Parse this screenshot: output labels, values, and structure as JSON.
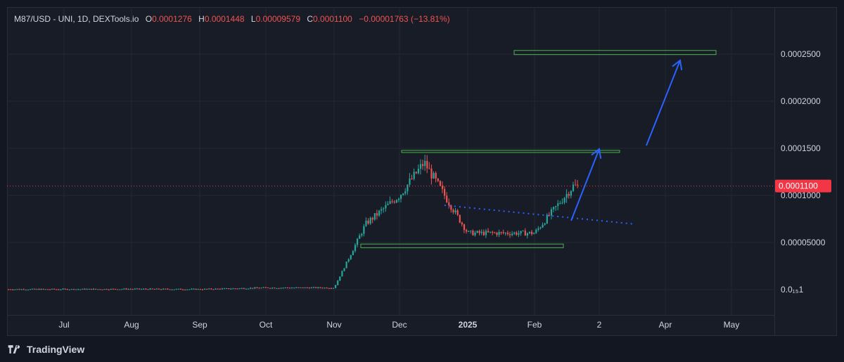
{
  "legend": {
    "symbol": "M87/USD - UNI, 1D, DEXTools.io",
    "open_label": "O",
    "open": "0.0001276",
    "high_label": "H",
    "high": "0.0001448",
    "low_label": "L",
    "low": "0.00009579",
    "close_label": "C",
    "close": "0.0001100",
    "change": "−0.00001763 (−13.81%)"
  },
  "footer": {
    "brand": "TradingView",
    "logo_icon": "tradingview-logo-icon"
  },
  "colors": {
    "background": "#131722",
    "up": "#26a69a",
    "down": "#ef5350",
    "rect": "#4caf50",
    "arrow": "#2962ff",
    "trendline": "#2962ff",
    "last_price": "#f23645"
  },
  "chart_data": {
    "type": "candlestick",
    "y_tick_labels": [
      "0.0002500",
      "0.0002000",
      "0.0001500",
      "0.0001000",
      "0.00005000",
      "0.0₁₅1"
    ],
    "y_ticks": [
      0.00025,
      0.0002,
      0.00015,
      0.0001,
      5e-05,
      0.0
    ],
    "x_tick_labels": [
      "Jul",
      "Aug",
      "Sep",
      "Oct",
      "Nov",
      "Dec",
      "2025",
      "Feb",
      "2",
      "Apr",
      "May"
    ],
    "last_price_label": "0.0001100",
    "last_price": 0.00011,
    "ohlc_summary": {
      "open": 0.0001276,
      "high": 0.0001448,
      "low": 9.579e-05,
      "close": 0.00011
    },
    "trend": [
      {
        "month": "Jul",
        "close": 3e-07
      },
      {
        "month": "Aug",
        "close": 6e-07
      },
      {
        "month": "Sep",
        "close": 3e-07
      },
      {
        "month": "Oct",
        "close": 2e-06
      },
      {
        "month": "Nov",
        "close": 2e-06
      },
      {
        "month": "mid-Nov",
        "close": 7e-05
      },
      {
        "month": "Dec",
        "close": 0.0001
      },
      {
        "month": "mid-Dec",
        "close": 0.000135
      },
      {
        "month": "2025",
        "close": 6e-05
      },
      {
        "month": "Feb",
        "close": 6e-05
      },
      {
        "month": "mid-Feb",
        "close": 0.00011
      }
    ],
    "annotations": {
      "support_zone": [
        4.446e-05,
        4.838e-05
      ],
      "resistance_zone": [
        0.0001463,
        0.0001478
      ],
      "target_zone": [
        0.0002495,
        0.0002539
      ],
      "descending_trendline": [
        8.95e-05,
        6.95e-05
      ]
    },
    "grid": true,
    "price_scale": "right"
  }
}
